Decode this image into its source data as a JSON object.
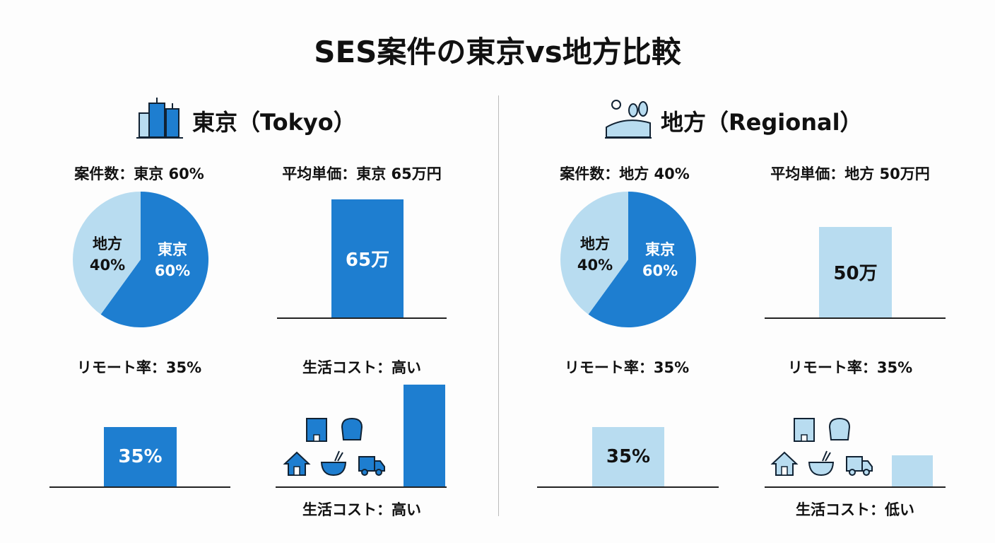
{
  "title": "SES案件の東京vs地方比較",
  "colors": {
    "dark": "#1e7ed0",
    "light": "#b8dcf0"
  },
  "tokyo": {
    "header": "東京（Tokyo）",
    "header_icon": "city-buildings-icon",
    "count_label": "案件数：東京 60%",
    "price_label": "平均単価：東京 65万円",
    "remote_label": "リモート率：35%",
    "cost_label": "生活コスト：高い",
    "cost_bottom_label": "生活コスト：高い",
    "cost_level": "high",
    "cost_icons": [
      "office-building-icon",
      "bread-icon",
      "house-icon",
      "noodle-bowl-icon",
      "truck-icon"
    ]
  },
  "regional": {
    "header": "地方（Regional）",
    "header_icon": "countryside-landscape-icon",
    "count_label": "案件数：地方 40%",
    "price_label": "平均単価：地方 50万円",
    "remote_label": "リモート率：35%",
    "cost_label": "リモート率：35%",
    "cost_bottom_label": "生活コスト：低い",
    "cost_level": "low",
    "cost_icons": [
      "office-building-icon",
      "bread-icon",
      "house-icon",
      "noodle-bowl-icon",
      "truck-icon"
    ]
  },
  "chart_data": [
    {
      "type": "pie",
      "panel": "tokyo",
      "slices": [
        {
          "label": "東京",
          "value": 60,
          "text": "東京",
          "pct": "60%"
        },
        {
          "label": "地方",
          "value": 40,
          "text": "地方",
          "pct": "40%"
        }
      ]
    },
    {
      "type": "bar",
      "panel": "tokyo",
      "unit": "万円",
      "values": [
        65
      ],
      "data_label": "65万"
    },
    {
      "type": "bar",
      "panel": "tokyo",
      "unit": "%",
      "values": [
        35
      ],
      "data_label": "35%"
    },
    {
      "type": "pie",
      "panel": "regional",
      "slices": [
        {
          "label": "東京",
          "value": 60,
          "text": "東京",
          "pct": "60%"
        },
        {
          "label": "地方",
          "value": 40,
          "text": "地方",
          "pct": "40%"
        }
      ]
    },
    {
      "type": "bar",
      "panel": "regional",
      "unit": "万円",
      "values": [
        50
      ],
      "data_label": "50万"
    },
    {
      "type": "bar",
      "panel": "regional",
      "unit": "%",
      "values": [
        35
      ],
      "data_label": "35%"
    }
  ]
}
